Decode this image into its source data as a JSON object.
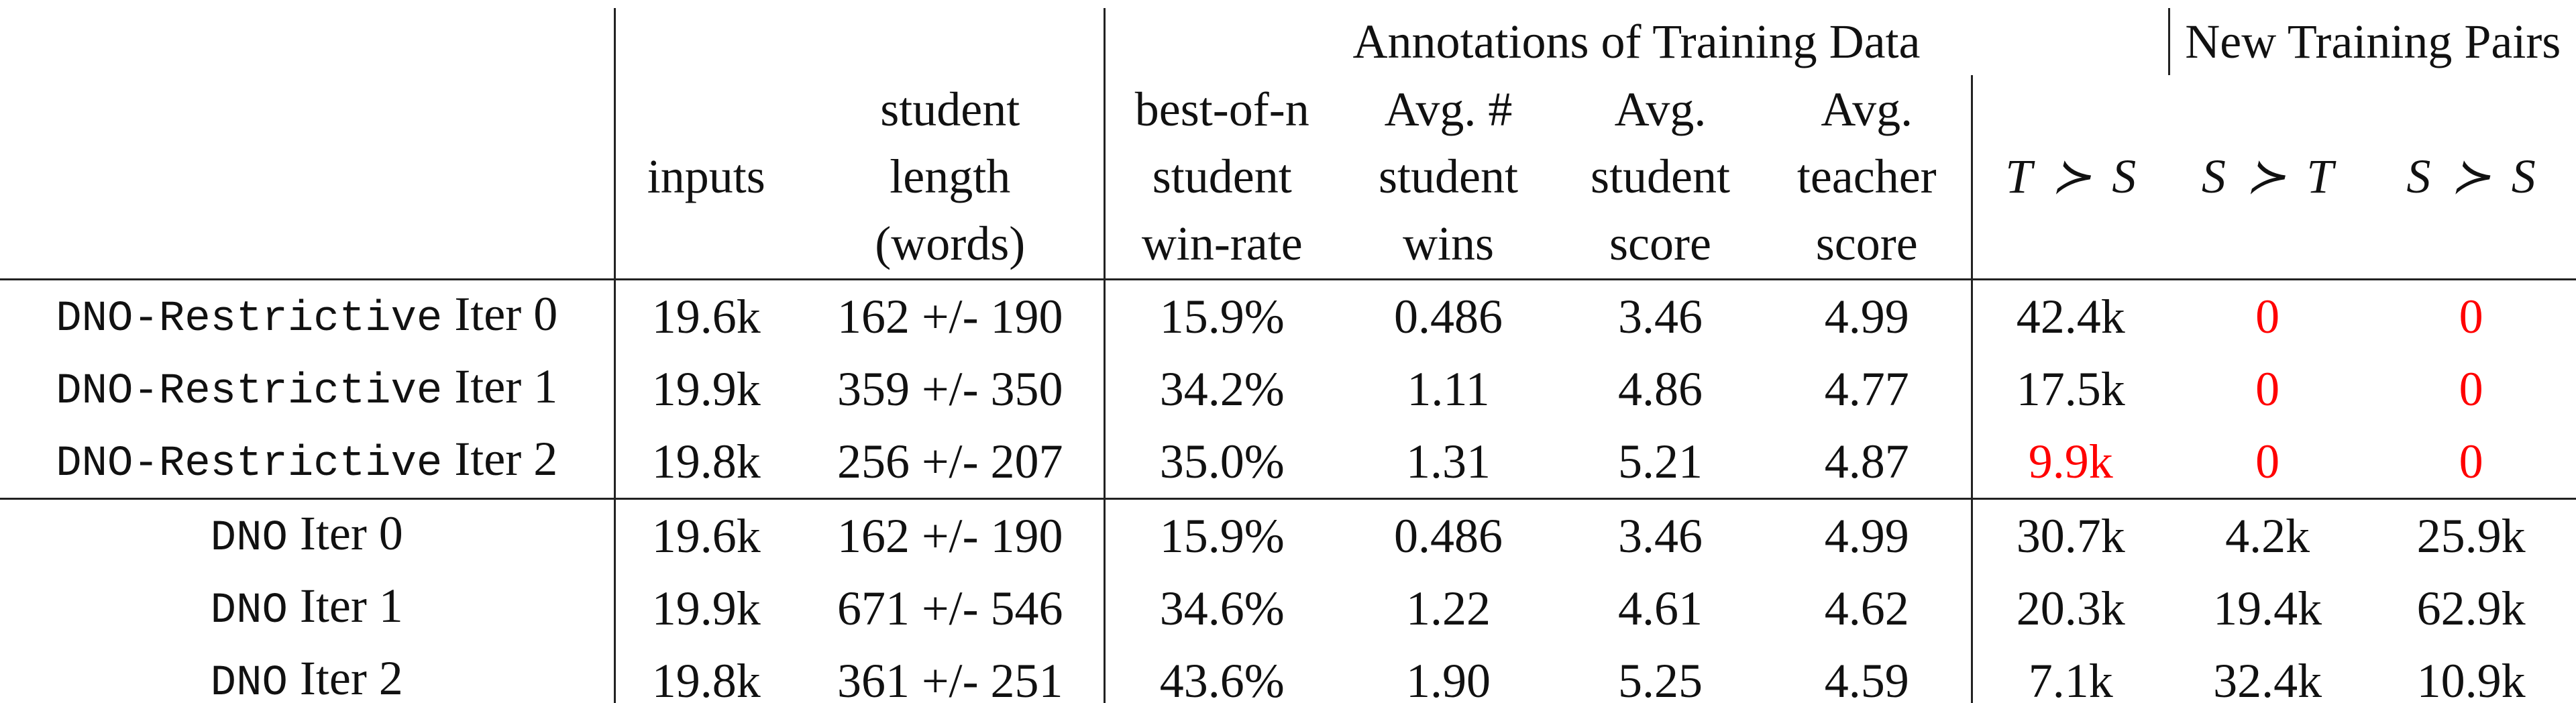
{
  "table": {
    "group_headers": [
      "Annotations of Training Data",
      "New Training Pairs"
    ],
    "columns": [
      [
        "inputs"
      ],
      [
        "student",
        "length",
        "(words)"
      ],
      [
        "best-of-n",
        "student",
        "win-rate"
      ],
      [
        "Avg. #",
        "student",
        "wins"
      ],
      [
        "Avg.",
        "student",
        "score"
      ],
      [
        "Avg.",
        "teacher",
        "score"
      ],
      [
        "T ≻ S"
      ],
      [
        "S ≻ T"
      ],
      [
        "S ≻ S"
      ]
    ],
    "row_groups": [
      [
        {
          "method": "DNO-Restrictive",
          "iter": "Iter 0",
          "cells": [
            "19.6k",
            "162 +/- 190",
            "15.9%",
            "0.486",
            "3.46",
            "4.99",
            "42.4k",
            {
              "text": "0",
              "color": "#ff0000"
            },
            {
              "text": "0",
              "color": "#ff0000"
            }
          ]
        },
        {
          "method": "DNO-Restrictive",
          "iter": "Iter 1",
          "cells": [
            "19.9k",
            "359 +/- 350",
            "34.2%",
            "1.11",
            "4.86",
            "4.77",
            "17.5k",
            {
              "text": "0",
              "color": "#ff0000"
            },
            {
              "text": "0",
              "color": "#ff0000"
            }
          ]
        },
        {
          "method": "DNO-Restrictive",
          "iter": "Iter 2",
          "cells": [
            "19.8k",
            "256 +/- 207",
            "35.0%",
            "1.31",
            "5.21",
            "4.87",
            {
              "text": "9.9k",
              "color": "#ff0000"
            },
            {
              "text": "0",
              "color": "#ff0000"
            },
            {
              "text": "0",
              "color": "#ff0000"
            }
          ]
        }
      ],
      [
        {
          "method": "DNO",
          "iter": "Iter 0",
          "cells": [
            "19.6k",
            "162 +/- 190",
            "15.9%",
            "0.486",
            "3.46",
            "4.99",
            "30.7k",
            "4.2k",
            "25.9k"
          ]
        },
        {
          "method": "DNO",
          "iter": "Iter 1",
          "cells": [
            "19.9k",
            "671 +/- 546",
            "34.6%",
            "1.22",
            "4.61",
            "4.62",
            "20.3k",
            "19.4k",
            "62.9k"
          ]
        },
        {
          "method": "DNO",
          "iter": "Iter 2",
          "cells": [
            "19.8k",
            "361 +/- 251",
            "43.6%",
            "1.90",
            "5.25",
            "4.59",
            "7.1k",
            "32.4k",
            "10.9k"
          ]
        }
      ]
    ]
  }
}
